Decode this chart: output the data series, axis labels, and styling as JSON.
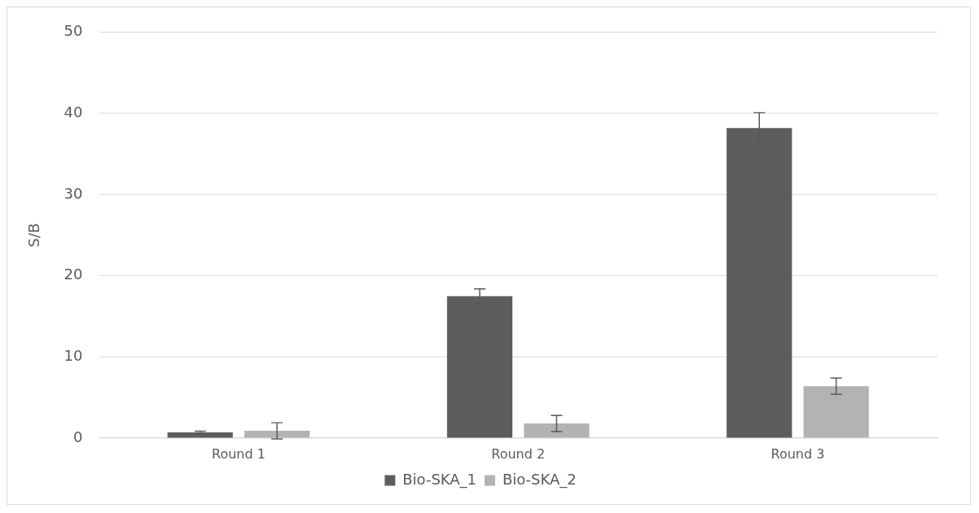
{
  "chart_data": {
    "type": "bar",
    "ylabel": "S/B",
    "categories": [
      "Round 1",
      "Round 2",
      "Round 3"
    ],
    "series": [
      {
        "name": "Bio-SKA_1",
        "color": "#5d5d5d",
        "values": [
          0.7,
          17.5,
          38.2
        ],
        "errors": [
          0.15,
          0.9,
          1.9
        ]
      },
      {
        "name": "Bio-SKA_2",
        "color": "#b3b3b3",
        "values": [
          0.9,
          1.8,
          6.4
        ],
        "errors": [
          1.0,
          1.0,
          1.0
        ]
      }
    ],
    "ylim": [
      0,
      50
    ],
    "yticks": [
      0,
      10,
      20,
      30,
      40,
      50
    ],
    "grid": "y",
    "legend": "bottom"
  }
}
